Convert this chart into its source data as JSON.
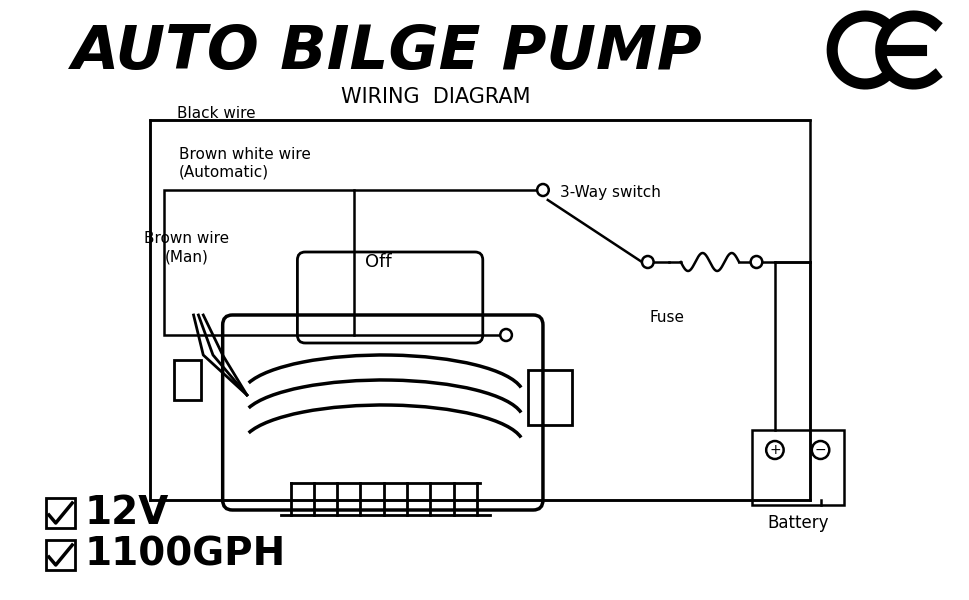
{
  "title": "AUTO BILGE PUMP",
  "subtitle": "WIRING  DIAGRAM",
  "bg_color": "#ffffff",
  "text_color": "#000000",
  "labels": {
    "black_wire": "Black wire",
    "brown_white_wire": "Brown white wire\n(Automatic)",
    "brown_wire": "Brown wire\n(Man)",
    "off": "Off",
    "switch": "3-Way switch",
    "fuse": "Fuse",
    "battery": "Battery",
    "voltage": "12V",
    "flow": "1100GPH"
  }
}
